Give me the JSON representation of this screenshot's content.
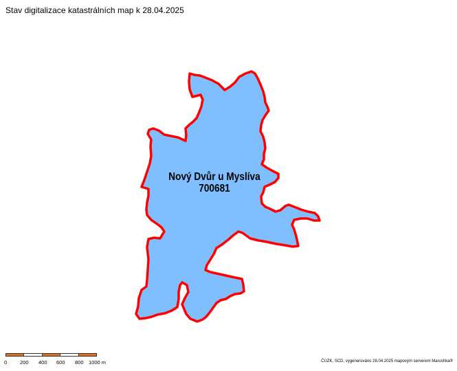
{
  "title": "Stav digitalizace katastrálních map k 28.04.2025",
  "cadastral_area": {
    "name": "Nový Dvůr u Myslíva",
    "code": "700681",
    "fill_color": "#80bfff",
    "border_color": "#ff0000"
  },
  "scale_bar": {
    "labels": [
      "0",
      "200",
      "400",
      "600",
      "800",
      "1000 m"
    ],
    "segment_colors": [
      "#e07020",
      "#ffffff",
      "#e07020",
      "#ffffff",
      "#e07020"
    ]
  },
  "credits": "ČÚZK, SCD, vygenerováno 28.04.2025 mapovým serverem Marushka®"
}
